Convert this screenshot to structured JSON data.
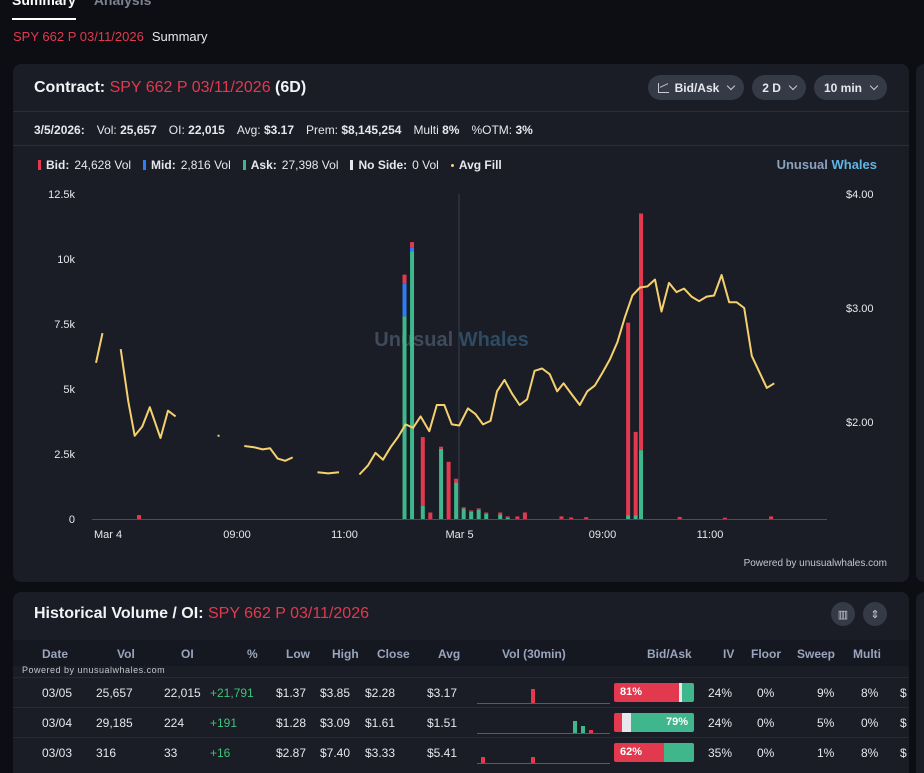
{
  "tabs": [
    {
      "label": "Summary"
    },
    {
      "label": "Analysis"
    }
  ],
  "breadcrumb": {
    "contract": "SPY 662 P 03/11/2026",
    "page": "Summary"
  },
  "chart_card": {
    "title_prefix": "Contract:",
    "contract": "SPY 662 P 03/11/2026",
    "dte": "(6D)",
    "controls": {
      "type": "Bid/Ask",
      "range": "2 D",
      "interval": "10 min"
    },
    "stats": {
      "date": "3/5/2026:",
      "vol_label": "Vol:",
      "vol": "25,657",
      "oi_label": "OI:",
      "oi": "22,015",
      "avg_label": "Avg:",
      "avg": "$3.17",
      "prem_label": "Prem:",
      "prem": "$8,145,254",
      "multi_label": "Multi",
      "multi": "8%",
      "otm_label": "%OTM:",
      "otm": "3%"
    },
    "legend": [
      {
        "label": "Bid:",
        "value": "24,628 Vol",
        "color": "#e2394f"
      },
      {
        "label": "Mid:",
        "value": "2,816 Vol",
        "color": "#2f7df6"
      },
      {
        "label": "Ask:",
        "value": "27,398 Vol",
        "color": "#3fb68b"
      },
      {
        "label": "No Side:",
        "value": "0 Vol",
        "color": "#e6e8ee"
      },
      {
        "label": "Avg Fill",
        "value": "",
        "color": "#f4d06f"
      }
    ],
    "brand": {
      "a": "Unusual",
      "b": "Whales"
    },
    "watermark": {
      "a": "Unusual",
      "b": "Whales"
    },
    "powered": "Powered by unusualwhales.com"
  },
  "chart_data": {
    "type": "bar",
    "title": "",
    "y_left": {
      "ticks": [
        "0",
        "2.5k",
        "5k",
        "7.5k",
        "10k",
        "12.5k"
      ],
      "range": [
        0,
        12500
      ]
    },
    "y_right": {
      "ticks": [
        "$2.00",
        "$3.00",
        "$4.00"
      ],
      "range": [
        1.15,
        4.0
      ]
    },
    "x_ticks": [
      {
        "label": "Mar 4",
        "slot": 0
      },
      {
        "label": "09:00",
        "slot": 13.3
      },
      {
        "label": "11:00",
        "slot": 23.3
      },
      {
        "label": "Mar 5",
        "slot": 34
      },
      {
        "label": "09:00",
        "slot": 47.3
      },
      {
        "label": "11:00",
        "slot": 57.3
      }
    ],
    "bars": [
      {
        "slot": 4,
        "bid": 150,
        "mid": 0,
        "ask": 0
      },
      {
        "slot": 28.7,
        "bid": 350,
        "mid": 1250,
        "ask": 7800
      },
      {
        "slot": 29.4,
        "bid": 200,
        "mid": 150,
        "ask": 10300
      },
      {
        "slot": 30.4,
        "bid": 2650,
        "mid": 0,
        "ask": 500
      },
      {
        "slot": 31.1,
        "bid": 250,
        "mid": 0,
        "ask": 0
      },
      {
        "slot": 32.1,
        "bid": 80,
        "mid": 0,
        "ask": 2700
      },
      {
        "slot": 32.8,
        "bid": 2200,
        "mid": 0,
        "ask": 0
      },
      {
        "slot": 33.5,
        "bid": 150,
        "mid": 0,
        "ask": 1400
      },
      {
        "slot": 34.2,
        "bid": 50,
        "mid": 0,
        "ask": 400
      },
      {
        "slot": 34.9,
        "bid": 50,
        "mid": 0,
        "ask": 280
      },
      {
        "slot": 35.6,
        "bid": 60,
        "mid": 0,
        "ask": 350
      },
      {
        "slot": 36.3,
        "bid": 50,
        "mid": 0,
        "ask": 200
      },
      {
        "slot": 37.6,
        "bid": 80,
        "mid": 0,
        "ask": 170
      },
      {
        "slot": 38.3,
        "bid": 50,
        "mid": 0,
        "ask": 50
      },
      {
        "slot": 39.2,
        "bid": 100,
        "mid": 0,
        "ask": 0
      },
      {
        "slot": 39.9,
        "bid": 250,
        "mid": 0,
        "ask": 0
      },
      {
        "slot": 43.3,
        "bid": 100,
        "mid": 0,
        "ask": 0
      },
      {
        "slot": 44.2,
        "bid": 60,
        "mid": 0,
        "ask": 0
      },
      {
        "slot": 45.6,
        "bid": 70,
        "mid": 0,
        "ask": 0
      },
      {
        "slot": 49.5,
        "bid": 7400,
        "mid": 0,
        "ask": 150
      },
      {
        "slot": 50.2,
        "bid": 3200,
        "mid": 0,
        "ask": 150
      },
      {
        "slot": 50.7,
        "bid": 9100,
        "mid": 0,
        "ask": 2650
      },
      {
        "slot": 54.3,
        "bid": 80,
        "mid": 0,
        "ask": 0
      },
      {
        "slot": 58.5,
        "bid": 50,
        "mid": 0,
        "ask": 0
      },
      {
        "slot": 62.8,
        "bid": 100,
        "mid": 0,
        "ask": 0
      }
    ],
    "avg_fill_segments": [
      [
        [
          0,
          2.52
        ],
        [
          0.6,
          2.78
        ]
      ],
      [
        [
          2.3,
          2.64
        ],
        [
          3.0,
          2.18
        ],
        [
          3.6,
          1.88
        ],
        [
          4.3,
          1.96
        ],
        [
          5.0,
          2.13
        ],
        [
          6.0,
          1.86
        ],
        [
          6.7,
          2.1
        ],
        [
          7.4,
          2.05
        ]
      ],
      [
        [
          11.4,
          1.88
        ]
      ],
      [
        [
          13.8,
          1.79
        ],
        [
          14.7,
          1.78
        ],
        [
          15.5,
          1.76
        ],
        [
          16.2,
          1.77
        ],
        [
          16.9,
          1.68
        ],
        [
          17.6,
          1.66
        ],
        [
          18.3,
          1.69
        ]
      ],
      [
        [
          20.6,
          1.56
        ],
        [
          21.6,
          1.55
        ],
        [
          22.6,
          1.56
        ]
      ],
      [
        [
          24.5,
          1.54
        ],
        [
          25.3,
          1.62
        ],
        [
          26.0,
          1.73
        ],
        [
          26.7,
          1.67
        ],
        [
          27.4,
          1.78
        ],
        [
          28.1,
          1.87
        ],
        [
          28.8,
          1.98
        ],
        [
          29.5,
          1.95
        ],
        [
          30.2,
          2.05
        ],
        [
          31.0,
          1.92
        ],
        [
          31.7,
          2.15
        ],
        [
          32.4,
          2.15
        ],
        [
          33.1,
          1.98
        ],
        [
          33.8,
          1.97
        ],
        [
          34.6,
          2.12
        ],
        [
          35.3,
          2.07
        ],
        [
          36.0,
          1.98
        ],
        [
          36.7,
          2.01
        ],
        [
          37.3,
          2.27
        ],
        [
          38.0,
          2.37
        ],
        [
          38.7,
          2.25
        ],
        [
          39.4,
          2.15
        ],
        [
          40.1,
          2.2
        ],
        [
          40.8,
          2.45
        ],
        [
          41.5,
          2.47
        ],
        [
          42.2,
          2.42
        ],
        [
          42.9,
          2.27
        ],
        [
          43.5,
          2.34
        ],
        [
          44.2,
          2.25
        ],
        [
          45.0,
          2.15
        ],
        [
          45.7,
          2.27
        ],
        [
          46.4,
          2.32
        ],
        [
          47.1,
          2.43
        ],
        [
          47.8,
          2.55
        ],
        [
          48.5,
          2.7
        ],
        [
          49.2,
          2.92
        ],
        [
          49.9,
          3.11
        ],
        [
          50.6,
          3.18
        ],
        [
          51.3,
          3.19
        ],
        [
          52.0,
          3.25
        ],
        [
          52.6,
          2.97
        ],
        [
          53.3,
          3.22
        ],
        [
          54.0,
          3.14
        ],
        [
          54.7,
          3.17
        ],
        [
          55.4,
          3.1
        ],
        [
          56.1,
          3.06
        ],
        [
          56.8,
          3.1
        ],
        [
          57.5,
          3.11
        ],
        [
          58.2,
          3.29
        ],
        [
          58.9,
          3.05
        ],
        [
          59.6,
          3.05
        ],
        [
          60.3,
          3.0
        ],
        [
          61.0,
          2.58
        ],
        [
          61.7,
          2.44
        ],
        [
          62.4,
          2.3
        ],
        [
          63.1,
          2.34
        ]
      ]
    ],
    "slot_count": 68
  },
  "hist_card": {
    "title_prefix": "Historical Volume / OI:",
    "contract": "SPY 662 P 03/11/2026",
    "powered": "Powered by unusualwhales.com",
    "columns": [
      "Date",
      "Vol",
      "OI",
      "%",
      "Low",
      "High",
      "Close",
      "Avg",
      "Vol (30min)",
      "Bid/Ask",
      "IV",
      "Floor",
      "Sweep",
      "Multi",
      "$"
    ],
    "rows": [
      {
        "date": "03/05",
        "vol": "25,657",
        "oi": "22,015",
        "chg": "+21,791",
        "low": "$1.37",
        "high": "$3.85",
        "close": "$2.28",
        "avg": "$3.17",
        "bid_pct": 81,
        "ask_pct": 15,
        "ba_label": "81%",
        "ba_side": "bid",
        "iv": "24%",
        "floor": "0%",
        "sweep": "9%",
        "multi": "8%",
        "dollar": "$",
        "mini": [
          {
            "x": 54,
            "h": 14,
            "c": "#e2394f"
          }
        ]
      },
      {
        "date": "03/04",
        "vol": "29,185",
        "oi": "224",
        "chg": "+191",
        "low": "$1.28",
        "high": "$3.09",
        "close": "$1.61",
        "avg": "$1.51",
        "bid_pct": 10,
        "ask_pct": 79,
        "ba_label": "79%",
        "ba_side": "ask",
        "iv": "24%",
        "floor": "0%",
        "sweep": "5%",
        "multi": "0%",
        "dollar": "$",
        "mini": [
          {
            "x": 96,
            "h": 12,
            "c": "#3fb68b"
          },
          {
            "x": 104,
            "h": 7,
            "c": "#3fb68b"
          },
          {
            "x": 112,
            "h": 3,
            "c": "#e2394f"
          }
        ]
      },
      {
        "date": "03/03",
        "vol": "316",
        "oi": "33",
        "chg": "+16",
        "low": "$2.87",
        "high": "$7.40",
        "close": "$3.33",
        "avg": "$5.41",
        "bid_pct": 62,
        "ask_pct": 38,
        "ba_label": "62%",
        "ba_side": "bid",
        "iv": "35%",
        "floor": "0%",
        "sweep": "1%",
        "multi": "8%",
        "dollar": "$",
        "mini": [
          {
            "x": 4,
            "h": 6,
            "c": "#e2394f"
          },
          {
            "x": 54,
            "h": 6,
            "c": "#e2394f"
          }
        ]
      }
    ]
  }
}
